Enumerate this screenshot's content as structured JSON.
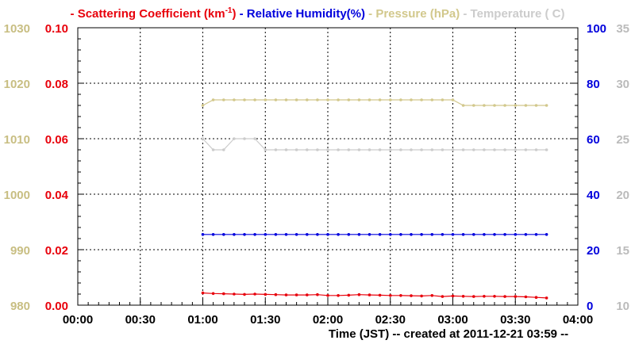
{
  "chart_data": {
    "type": "line",
    "legend_position": "top",
    "grid": true,
    "legend": [
      {
        "dash": "-",
        "text": "Scattering Coefficient (km",
        "sup": "-1",
        "tail": ")",
        "color": "#e8000b"
      },
      {
        "dash": "-",
        "text": "Relative Humidity(%)",
        "color": "#0000dd"
      },
      {
        "dash": "-",
        "text": "Pressure (hPa)",
        "color": "#d2c88c"
      },
      {
        "dash": "-",
        "text": "Temperature (  C)",
        "color": "#cccccc"
      }
    ],
    "xlabel": "Time (JST)  -- created at 2011-12-21 03:59 --",
    "x_ticks": [
      "00:00",
      "00:30",
      "01:00",
      "01:30",
      "02:00",
      "02:30",
      "03:00",
      "03:30",
      "04:00"
    ],
    "x_range_minutes": [
      0,
      240
    ],
    "axes": {
      "pressure": {
        "side": "left-outer",
        "color": "#c8be82",
        "range": [
          980,
          1030
        ],
        "ticks": [
          "980",
          "990",
          "1000",
          "1010",
          "1020",
          "1030"
        ]
      },
      "scattering": {
        "side": "left-inner",
        "color": "#e8000b",
        "range": [
          0,
          0.1
        ],
        "ticks": [
          "0.00",
          "0.02",
          "0.04",
          "0.06",
          "0.08",
          "0.10"
        ]
      },
      "humidity": {
        "side": "right-inner",
        "color": "#0000dd",
        "range": [
          0,
          100
        ],
        "ticks": [
          "0",
          "20",
          "40",
          "60",
          "80",
          "100"
        ]
      },
      "temperature": {
        "side": "right-outer",
        "color": "#bbbbbb",
        "range": [
          10,
          35
        ],
        "ticks": [
          "10",
          "15",
          "20",
          "25",
          "30",
          "35"
        ]
      }
    },
    "series": [
      {
        "axis": "scattering",
        "color": "#e8000b",
        "x_start_min": 60,
        "x_step_min": 5,
        "values": [
          0.0044,
          0.0042,
          0.0041,
          0.004,
          0.0039,
          0.004,
          0.0039,
          0.0038,
          0.0037,
          0.0037,
          0.0037,
          0.0038,
          0.0035,
          0.0035,
          0.0036,
          0.0038,
          0.0037,
          0.0036,
          0.0035,
          0.0035,
          0.0034,
          0.0033,
          0.0035,
          0.0031,
          0.0033,
          0.0032,
          0.0031,
          0.0032,
          0.0032,
          0.0031,
          0.0031,
          0.003,
          0.0028,
          0.0026
        ]
      },
      {
        "axis": "humidity",
        "color": "#0000dd",
        "x_start_min": 60,
        "x_step_min": 5,
        "values": [
          25.5,
          25.5,
          25.5,
          25.5,
          25.5,
          25.5,
          25.5,
          25.5,
          25.5,
          25.5,
          25.5,
          25.5,
          25.5,
          25.5,
          25.5,
          25.5,
          25.5,
          25.5,
          25.5,
          25.5,
          25.5,
          25.5,
          25.5,
          25.5,
          25.5,
          25.5,
          25.5,
          25.5,
          25.5,
          25.5,
          25.5,
          25.5,
          25.5,
          25.5
        ]
      },
      {
        "axis": "pressure",
        "color": "#d2c88c",
        "x_start_min": 60,
        "x_step_min": 5,
        "values": [
          1016,
          1017,
          1017,
          1017,
          1017,
          1017,
          1017,
          1017,
          1017,
          1017,
          1017,
          1017,
          1017,
          1017,
          1017,
          1017,
          1017,
          1017,
          1017,
          1017,
          1017,
          1017,
          1017,
          1017,
          1017,
          1016,
          1016,
          1016,
          1016,
          1016,
          1016,
          1016,
          1016,
          1016
        ]
      },
      {
        "axis": "temperature",
        "color": "#cccccc",
        "x_start_min": 60,
        "x_step_min": 5,
        "values": [
          25,
          24,
          24,
          25,
          25,
          25,
          24,
          24,
          24,
          24,
          24,
          24,
          24,
          24,
          24,
          24,
          24,
          24,
          24,
          24,
          24,
          24,
          24,
          24,
          24,
          24,
          24,
          24,
          24,
          24,
          24,
          24,
          24,
          24
        ]
      }
    ]
  }
}
